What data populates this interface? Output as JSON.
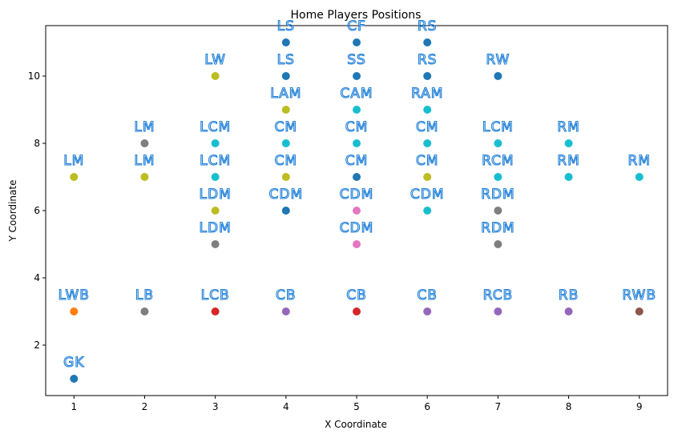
{
  "chart_data": {
    "type": "scatter",
    "title": "Home Players Positions",
    "xlabel": "X Coordinate",
    "ylabel": "Y Coordinate",
    "xlim": [
      0.6,
      9.4
    ],
    "ylim": [
      0.5,
      11.5
    ],
    "xticks": [
      "1",
      "2",
      "3",
      "4",
      "5",
      "6",
      "7",
      "8",
      "9"
    ],
    "yticks": [
      "2",
      "4",
      "6",
      "8",
      "10"
    ],
    "grid": false,
    "points": [
      {
        "x": 1,
        "y": 1,
        "label": "GK",
        "color": "#1f77b4"
      },
      {
        "x": 1,
        "y": 3,
        "label": "LWB",
        "color": "#ff7f0e"
      },
      {
        "x": 1,
        "y": 7,
        "label": "LM",
        "color": "#bcbd22"
      },
      {
        "x": 2,
        "y": 3,
        "label": "LB",
        "color": "#7f7f7f"
      },
      {
        "x": 2,
        "y": 7,
        "label": "LM",
        "color": "#bcbd22"
      },
      {
        "x": 2,
        "y": 8,
        "label": "LM",
        "color": "#7f7f7f"
      },
      {
        "x": 3,
        "y": 3,
        "label": "LCB",
        "color": "#d62728"
      },
      {
        "x": 3,
        "y": 5,
        "label": "LDM",
        "color": "#7f7f7f"
      },
      {
        "x": 3,
        "y": 6,
        "label": "LDM",
        "color": "#bcbd22"
      },
      {
        "x": 3,
        "y": 7,
        "label": "LCM",
        "color": "#17becf"
      },
      {
        "x": 3,
        "y": 8,
        "label": "LCM",
        "color": "#17becf"
      },
      {
        "x": 3,
        "y": 10,
        "label": "LW",
        "color": "#bcbd22"
      },
      {
        "x": 4,
        "y": 3,
        "label": "CB",
        "color": "#9467bd"
      },
      {
        "x": 4,
        "y": 6,
        "label": "CDM",
        "color": "#1f77b4"
      },
      {
        "x": 4,
        "y": 7,
        "label": "CM",
        "color": "#bcbd22"
      },
      {
        "x": 4,
        "y": 8,
        "label": "CM",
        "color": "#17becf"
      },
      {
        "x": 4,
        "y": 9,
        "label": "LAM",
        "color": "#bcbd22"
      },
      {
        "x": 4,
        "y": 10,
        "label": "LS",
        "color": "#1f77b4"
      },
      {
        "x": 4,
        "y": 11,
        "label": "LS",
        "color": "#1f77b4"
      },
      {
        "x": 5,
        "y": 3,
        "label": "CB",
        "color": "#d62728"
      },
      {
        "x": 5,
        "y": 5,
        "label": "CDM",
        "color": "#e377c2"
      },
      {
        "x": 5,
        "y": 6,
        "label": "CDM",
        "color": "#e377c2"
      },
      {
        "x": 5,
        "y": 7,
        "label": "CM",
        "color": "#1f77b4"
      },
      {
        "x": 5,
        "y": 8,
        "label": "CM",
        "color": "#17becf"
      },
      {
        "x": 5,
        "y": 9,
        "label": "CAM",
        "color": "#17becf"
      },
      {
        "x": 5,
        "y": 10,
        "label": "SS",
        "color": "#1f77b4"
      },
      {
        "x": 5,
        "y": 11,
        "label": "CF",
        "color": "#1f77b4"
      },
      {
        "x": 6,
        "y": 3,
        "label": "CB",
        "color": "#9467bd"
      },
      {
        "x": 6,
        "y": 6,
        "label": "CDM",
        "color": "#17becf"
      },
      {
        "x": 6,
        "y": 7,
        "label": "CM",
        "color": "#bcbd22"
      },
      {
        "x": 6,
        "y": 8,
        "label": "CM",
        "color": "#17becf"
      },
      {
        "x": 6,
        "y": 9,
        "label": "RAM",
        "color": "#17becf"
      },
      {
        "x": 6,
        "y": 10,
        "label": "RS",
        "color": "#1f77b4"
      },
      {
        "x": 6,
        "y": 11,
        "label": "RS",
        "color": "#1f77b4"
      },
      {
        "x": 7,
        "y": 3,
        "label": "RCB",
        "color": "#9467bd"
      },
      {
        "x": 7,
        "y": 5,
        "label": "RDM",
        "color": "#7f7f7f"
      },
      {
        "x": 7,
        "y": 6,
        "label": "RDM",
        "color": "#7f7f7f"
      },
      {
        "x": 7,
        "y": 7,
        "label": "RCM",
        "color": "#17becf"
      },
      {
        "x": 7,
        "y": 8,
        "label": "LCM",
        "color": "#17becf"
      },
      {
        "x": 7,
        "y": 10,
        "label": "RW",
        "color": "#1f77b4"
      },
      {
        "x": 8,
        "y": 3,
        "label": "RB",
        "color": "#9467bd"
      },
      {
        "x": 8,
        "y": 7,
        "label": "RM",
        "color": "#17becf"
      },
      {
        "x": 8,
        "y": 8,
        "label": "RM",
        "color": "#17becf"
      },
      {
        "x": 9,
        "y": 3,
        "label": "RWB",
        "color": "#8c564b"
      },
      {
        "x": 9,
        "y": 7,
        "label": "RM",
        "color": "#17becf"
      }
    ]
  }
}
